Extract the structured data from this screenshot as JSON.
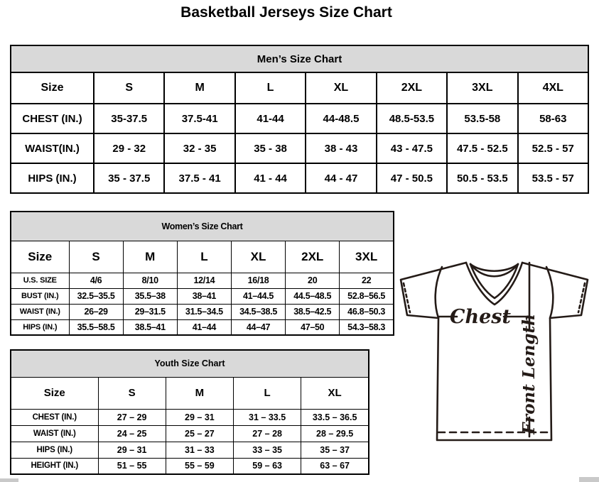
{
  "page": {
    "title": "Basketball Jerseys Size Chart"
  },
  "tables": {
    "men": {
      "title": "Men’s Size Chart",
      "header": [
        "Size",
        "S",
        "M",
        "L",
        "XL",
        "2XL",
        "3XL",
        "4XL"
      ],
      "rows": [
        [
          "CHEST (IN.)",
          "35-37.5",
          "37.5-41",
          "41-44",
          "44-48.5",
          "48.5-53.5",
          "53.5-58",
          "58-63"
        ],
        [
          "WAIST(IN.)",
          "29 - 32",
          "32 - 35",
          "35 - 38",
          "38 - 43",
          "43 - 47.5",
          "47.5 - 52.5",
          "52.5 - 57"
        ],
        [
          "HIPS (IN.)",
          "35 - 37.5",
          "37.5 - 41",
          "41 - 44",
          "44 - 47",
          "47 - 50.5",
          "50.5 - 53.5",
          "53.5 - 57"
        ]
      ]
    },
    "women": {
      "title": "Women’s Size Chart",
      "header": [
        "Size",
        "S",
        "M",
        "L",
        "XL",
        "2XL",
        "3XL"
      ],
      "rows": [
        [
          "U.S. SIZE",
          "4/6",
          "8/10",
          "12/14",
          "16/18",
          "20",
          "22"
        ],
        [
          "BUST (IN.)",
          "32.5–35.5",
          "35.5–38",
          "38–41",
          "41–44.5",
          "44.5–48.5",
          "52.8–56.5"
        ],
        [
          "WAIST (IN.)",
          "26–29",
          "29–31.5",
          "31.5–34.5",
          "34.5–38.5",
          "38.5–42.5",
          "46.8–50.3"
        ],
        [
          "HIPS (IN.)",
          "35.5–58.5",
          "38.5–41",
          "41–44",
          "44–47",
          "47–50",
          "54.3–58.3"
        ]
      ]
    },
    "youth": {
      "title": "Youth Size Chart",
      "header": [
        "Size",
        "S",
        "M",
        "L",
        "XL"
      ],
      "rows": [
        [
          "CHEST (IN.)",
          "27 – 29",
          "29 – 31",
          "31 – 33.5",
          "33.5 – 36.5"
        ],
        [
          "WAIST (IN.)",
          "24 – 25",
          "25 – 27",
          "27 – 28",
          "28 – 29.5"
        ],
        [
          "HIPS (IN.)",
          "29 – 31",
          "31 – 33",
          "33 – 35",
          "35 – 37"
        ],
        [
          "HEIGHT (IN.)",
          "51 – 55",
          "55 – 59",
          "59 – 63",
          "63 – 67"
        ]
      ]
    }
  },
  "diagram": {
    "chest_label": "Chest",
    "front_length_label": "Front Length"
  },
  "colors": {
    "table_header_band": "#d9d9d9",
    "border": "#000000",
    "diagram_line": "#241b17"
  }
}
